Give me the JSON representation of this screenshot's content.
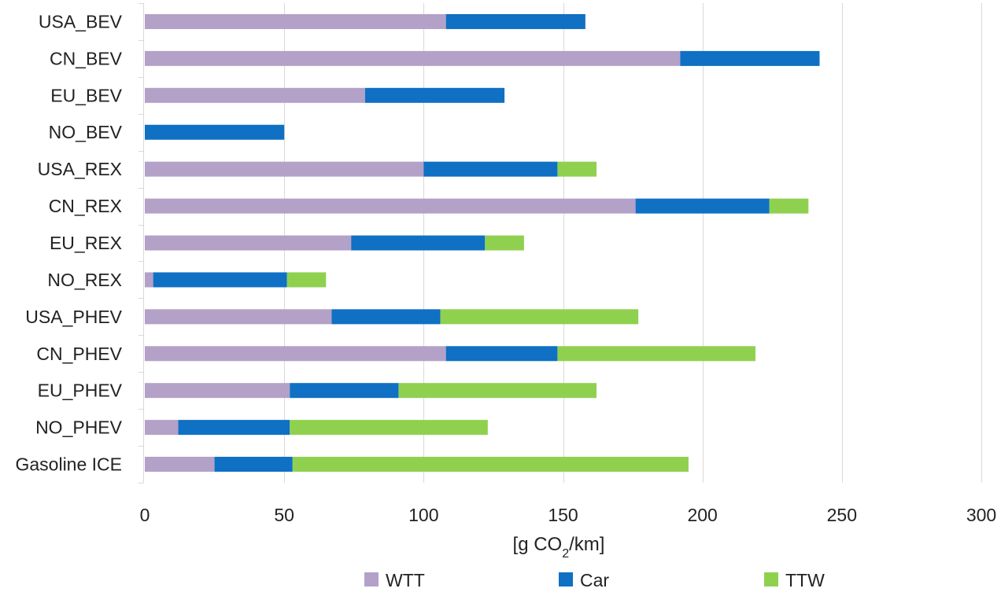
{
  "chart_data": {
    "type": "bar",
    "orientation": "horizontal",
    "stacked": true,
    "categories": [
      "USA_BEV",
      "CN_BEV",
      "EU_BEV",
      "NO_BEV",
      "USA_REX",
      "CN_REX",
      "EU_REX",
      "NO_REX",
      "USA_PHEV",
      "CN_PHEV",
      "EU_PHEV",
      "NO_PHEV",
      "Gasoline ICE"
    ],
    "series": [
      {
        "name": "WTT",
        "color": "#b3a1c8",
        "values": [
          108,
          192,
          79,
          0,
          100,
          176,
          74,
          3,
          67,
          108,
          52,
          12,
          25
        ]
      },
      {
        "name": "Car",
        "color": "#0f70c4",
        "values": [
          50,
          50,
          50,
          50,
          48,
          48,
          48,
          48,
          39,
          40,
          39,
          40,
          28
        ]
      },
      {
        "name": "TTW",
        "color": "#8fd14f",
        "values": [
          0,
          0,
          0,
          0,
          14,
          14,
          14,
          14,
          71,
          71,
          71,
          71,
          142
        ]
      }
    ],
    "xlabel": {
      "prefix": "[g CO",
      "sub": "2",
      "suffix": "/km]"
    },
    "xlim": [
      0,
      300
    ],
    "xticks": [
      0,
      50,
      100,
      150,
      200,
      250,
      300
    ],
    "grid": "vertical",
    "legend_position": "bottom"
  }
}
